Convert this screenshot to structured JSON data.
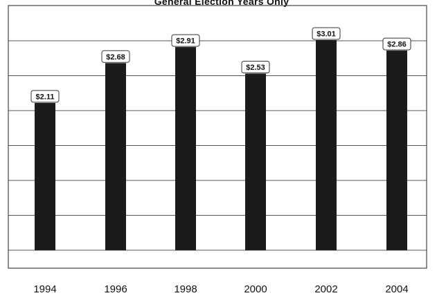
{
  "chart_data": {
    "type": "bar",
    "title": "General Election Years Only",
    "xlabel": "",
    "ylabel": "",
    "categories": [
      "1994",
      "1996",
      "1998",
      "2000",
      "2002",
      "2004"
    ],
    "values": [
      2.11,
      2.68,
      2.91,
      2.53,
      3.01,
      2.86
    ],
    "value_labels": [
      "$2.11",
      "$2.68",
      "$2.91",
      "$2.53",
      "$3.01",
      "$2.86"
    ],
    "ylim": [
      0,
      3.5
    ],
    "grid": true,
    "legend": "none",
    "bar_color": "#1b1b1b"
  }
}
